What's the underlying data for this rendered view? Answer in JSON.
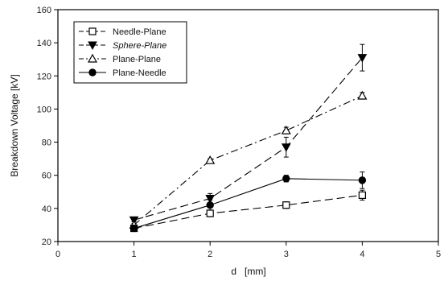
{
  "chart_data": {
    "type": "line",
    "xlabel": "d   [mm]",
    "ylabel": "Breakdown Voltage [kV]",
    "xlim": [
      0,
      5
    ],
    "ylim": [
      20,
      160
    ],
    "xticks": [
      0,
      1,
      2,
      3,
      4,
      5
    ],
    "yticks": [
      20,
      40,
      60,
      80,
      100,
      120,
      140,
      160
    ],
    "grid": false,
    "legend_position": "top-left",
    "series": [
      {
        "name": "Needle-Plane",
        "marker": "square-open",
        "dash": "long-dash",
        "italic": false,
        "x": [
          1,
          2,
          3,
          4
        ],
        "values": [
          28,
          37,
          42,
          48
        ],
        "errors": [
          1,
          2,
          2,
          3
        ]
      },
      {
        "name": "Sphere-Plane",
        "marker": "triangle-down-filled",
        "dash": "long-dash",
        "italic": true,
        "x": [
          1,
          2,
          3,
          4
        ],
        "values": [
          33,
          46,
          77,
          131
        ],
        "errors": [
          1,
          3,
          6,
          8
        ]
      },
      {
        "name": "Plane-Plane",
        "marker": "triangle-up-open",
        "dash": "dash-dot",
        "italic": false,
        "x": [
          1,
          2,
          3,
          4
        ],
        "values": [
          30,
          69,
          87,
          108
        ],
        "errors": [
          1,
          1,
          2,
          2
        ]
      },
      {
        "name": "Plane-Needle",
        "marker": "circle-filled",
        "dash": "solid",
        "italic": false,
        "x": [
          1,
          2,
          3,
          4
        ],
        "values": [
          28,
          42,
          58,
          57
        ],
        "errors": [
          1,
          3,
          2,
          5
        ]
      }
    ]
  }
}
